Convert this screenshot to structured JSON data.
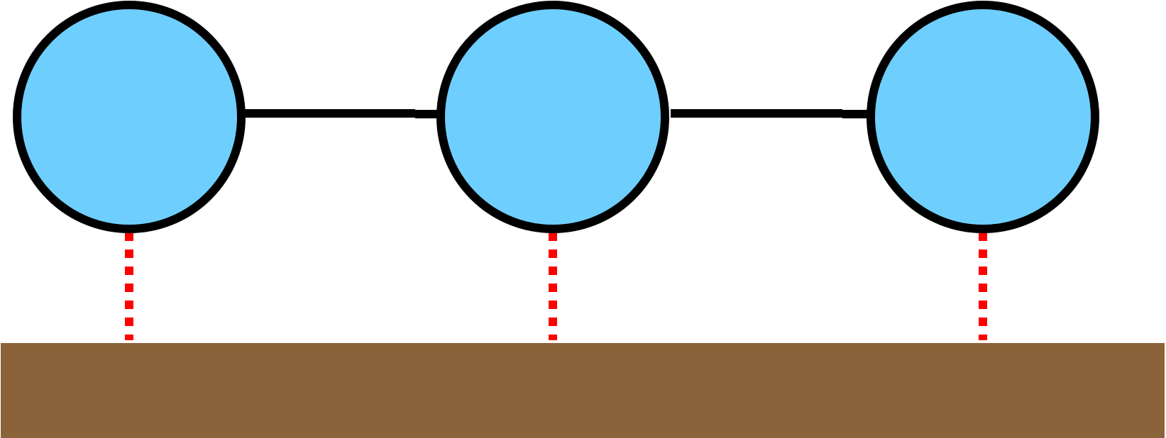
{
  "diagram": {
    "node_count": 3,
    "nodes": [
      {
        "id": "node-1",
        "label": ""
      },
      {
        "id": "node-2",
        "label": ""
      },
      {
        "id": "node-3",
        "label": ""
      }
    ],
    "links": [
      {
        "from": "node-1",
        "to": "node-2",
        "style": "solid"
      },
      {
        "from": "node-2",
        "to": "node-3",
        "style": "solid"
      }
    ],
    "anchors": [
      {
        "node": "node-1",
        "style": "dashed"
      },
      {
        "node": "node-2",
        "style": "dashed"
      },
      {
        "node": "node-3",
        "style": "dashed"
      }
    ],
    "colors": {
      "node_fill": "#6ECFFF",
      "node_stroke": "#000000",
      "link_stroke": "#000000",
      "anchor_stroke": "#FF0000",
      "ground_fill": "#8B633A",
      "background": "#FFFFFF"
    }
  }
}
